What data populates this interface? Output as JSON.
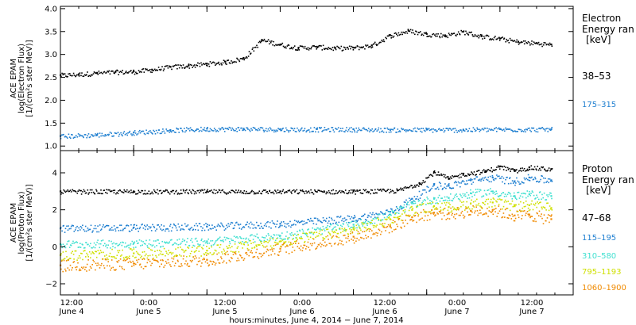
{
  "chart_data": [
    {
      "type": "scatter",
      "panel": "electron",
      "ylabel_lines": [
        "ACE EPAM",
        "log(Electron Flux)",
        "[1/(cm²s ster MeV)]"
      ],
      "ylim": [
        0.9,
        4.05
      ],
      "yticks": [
        1.0,
        1.5,
        2.0,
        2.5,
        3.0,
        3.5,
        4.0
      ],
      "ytick_labels": [
        "1.0",
        "1.5",
        "2.0",
        "2.5",
        "3.0",
        "3.5",
        "4.0"
      ],
      "legend_title": [
        "Electron",
        "Energy ran",
        "[keV]"
      ],
      "series": [
        {
          "name": "38–53",
          "color": "#000000",
          "x": [
            0,
            0.125,
            0.25,
            0.375,
            0.5,
            0.625,
            0.75,
            0.875,
            1.0,
            1.125,
            1.25,
            1.375,
            1.5,
            1.625,
            1.75,
            1.875,
            2.0,
            2.125,
            2.25,
            2.375,
            2.5,
            2.625,
            2.75,
            2.875,
            3.0,
            3.125,
            3.25,
            3.35
          ],
          "y": [
            2.55,
            2.57,
            2.6,
            2.62,
            2.63,
            2.67,
            2.73,
            2.76,
            2.8,
            2.84,
            2.92,
            3.32,
            3.22,
            3.15,
            3.17,
            3.14,
            3.15,
            3.2,
            3.42,
            3.52,
            3.45,
            3.42,
            3.5,
            3.4,
            3.35,
            3.28,
            3.25,
            3.22
          ]
        },
        {
          "name": "175–315",
          "color": "#1f7fd0",
          "x": [
            0,
            0.25,
            0.5,
            0.75,
            1.0,
            1.25,
            1.5,
            1.75,
            2.0,
            2.25,
            2.5,
            2.75,
            3.0,
            3.35
          ],
          "y": [
            1.22,
            1.25,
            1.3,
            1.35,
            1.38,
            1.38,
            1.37,
            1.37,
            1.37,
            1.36,
            1.36,
            1.36,
            1.37,
            1.37
          ]
        }
      ]
    },
    {
      "type": "scatter",
      "panel": "proton",
      "ylabel_lines": [
        "ACE EPAM",
        "log(Proton Flux)",
        "[1/(cm²s ster MeV)]"
      ],
      "ylim": [
        -2.6,
        5.2
      ],
      "yticks": [
        -2,
        0,
        2,
        4
      ],
      "ytick_labels": [
        "−2",
        "0",
        "2",
        "4"
      ],
      "legend_title": [
        "Proton",
        "Energy ran",
        "[keV]"
      ],
      "series": [
        {
          "name": "47–68",
          "color": "#000000",
          "x": [
            0,
            0.5,
            1.0,
            1.5,
            2.0,
            2.3,
            2.45,
            2.55,
            2.65,
            2.75,
            2.9,
            3.0,
            3.1,
            3.2,
            3.35
          ],
          "y": [
            3.0,
            3.0,
            3.0,
            3.0,
            3.0,
            3.05,
            3.45,
            4.05,
            3.7,
            3.95,
            4.1,
            4.35,
            4.1,
            4.3,
            4.2
          ]
        },
        {
          "name": "115–195",
          "color": "#1f7fd0",
          "x": [
            0,
            0.5,
            1.0,
            1.5,
            2.0,
            2.25,
            2.4,
            2.55,
            2.65,
            2.8,
            2.95,
            3.1,
            3.2,
            3.35
          ],
          "y": [
            1.0,
            1.05,
            1.1,
            1.25,
            1.55,
            1.9,
            2.6,
            3.35,
            3.3,
            3.6,
            3.75,
            3.55,
            3.75,
            3.6
          ]
        },
        {
          "name": "310–580",
          "color": "#40e0d0",
          "x": [
            0,
            0.5,
            1.0,
            1.5,
            2.0,
            2.25,
            2.4,
            2.55,
            2.65,
            2.8,
            2.95,
            3.1,
            3.2,
            3.35
          ],
          "y": [
            0.15,
            0.2,
            0.3,
            0.6,
            1.2,
            1.75,
            2.35,
            2.6,
            2.65,
            2.9,
            3.0,
            2.75,
            2.85,
            2.75
          ]
        },
        {
          "name": "795–1193",
          "color": "#cfe000",
          "x": [
            0,
            0.5,
            1.0,
            1.5,
            2.0,
            2.25,
            2.4,
            2.55,
            2.65,
            2.8,
            2.95,
            3.1,
            3.2,
            3.35
          ],
          "y": [
            -0.45,
            -0.35,
            -0.2,
            0.3,
            0.95,
            1.5,
            2.0,
            2.2,
            2.15,
            2.35,
            2.4,
            2.2,
            2.25,
            2.1
          ]
        },
        {
          "name": "1060–1900",
          "color": "#f08a00",
          "x": [
            0,
            0.5,
            1.0,
            1.5,
            2.0,
            2.25,
            2.4,
            2.55,
            2.65,
            2.8,
            2.95,
            3.1,
            3.2,
            3.35
          ],
          "y": [
            -1.0,
            -0.9,
            -0.7,
            -0.1,
            0.55,
            1.1,
            1.6,
            1.85,
            1.8,
            1.95,
            2.0,
            1.7,
            1.75,
            1.5
          ]
        }
      ]
    }
  ],
  "x_axis": {
    "xlim": [
      0,
      3.5
    ],
    "major_ticks": [
      0,
      0.5,
      1.0,
      1.5,
      2.0,
      2.5,
      3.0,
      3.5
    ],
    "time_labels": [
      "12:00",
      "0:00",
      "12:00",
      "0:00",
      "12:00",
      "0:00",
      "12:00"
    ],
    "date_labels": [
      "June 4",
      "June 5",
      "June 5",
      "June 6",
      "June 6",
      "June 7",
      "June 7"
    ],
    "xlabel": "hours:minutes, June  4, 2014 − June  7, 2014"
  }
}
